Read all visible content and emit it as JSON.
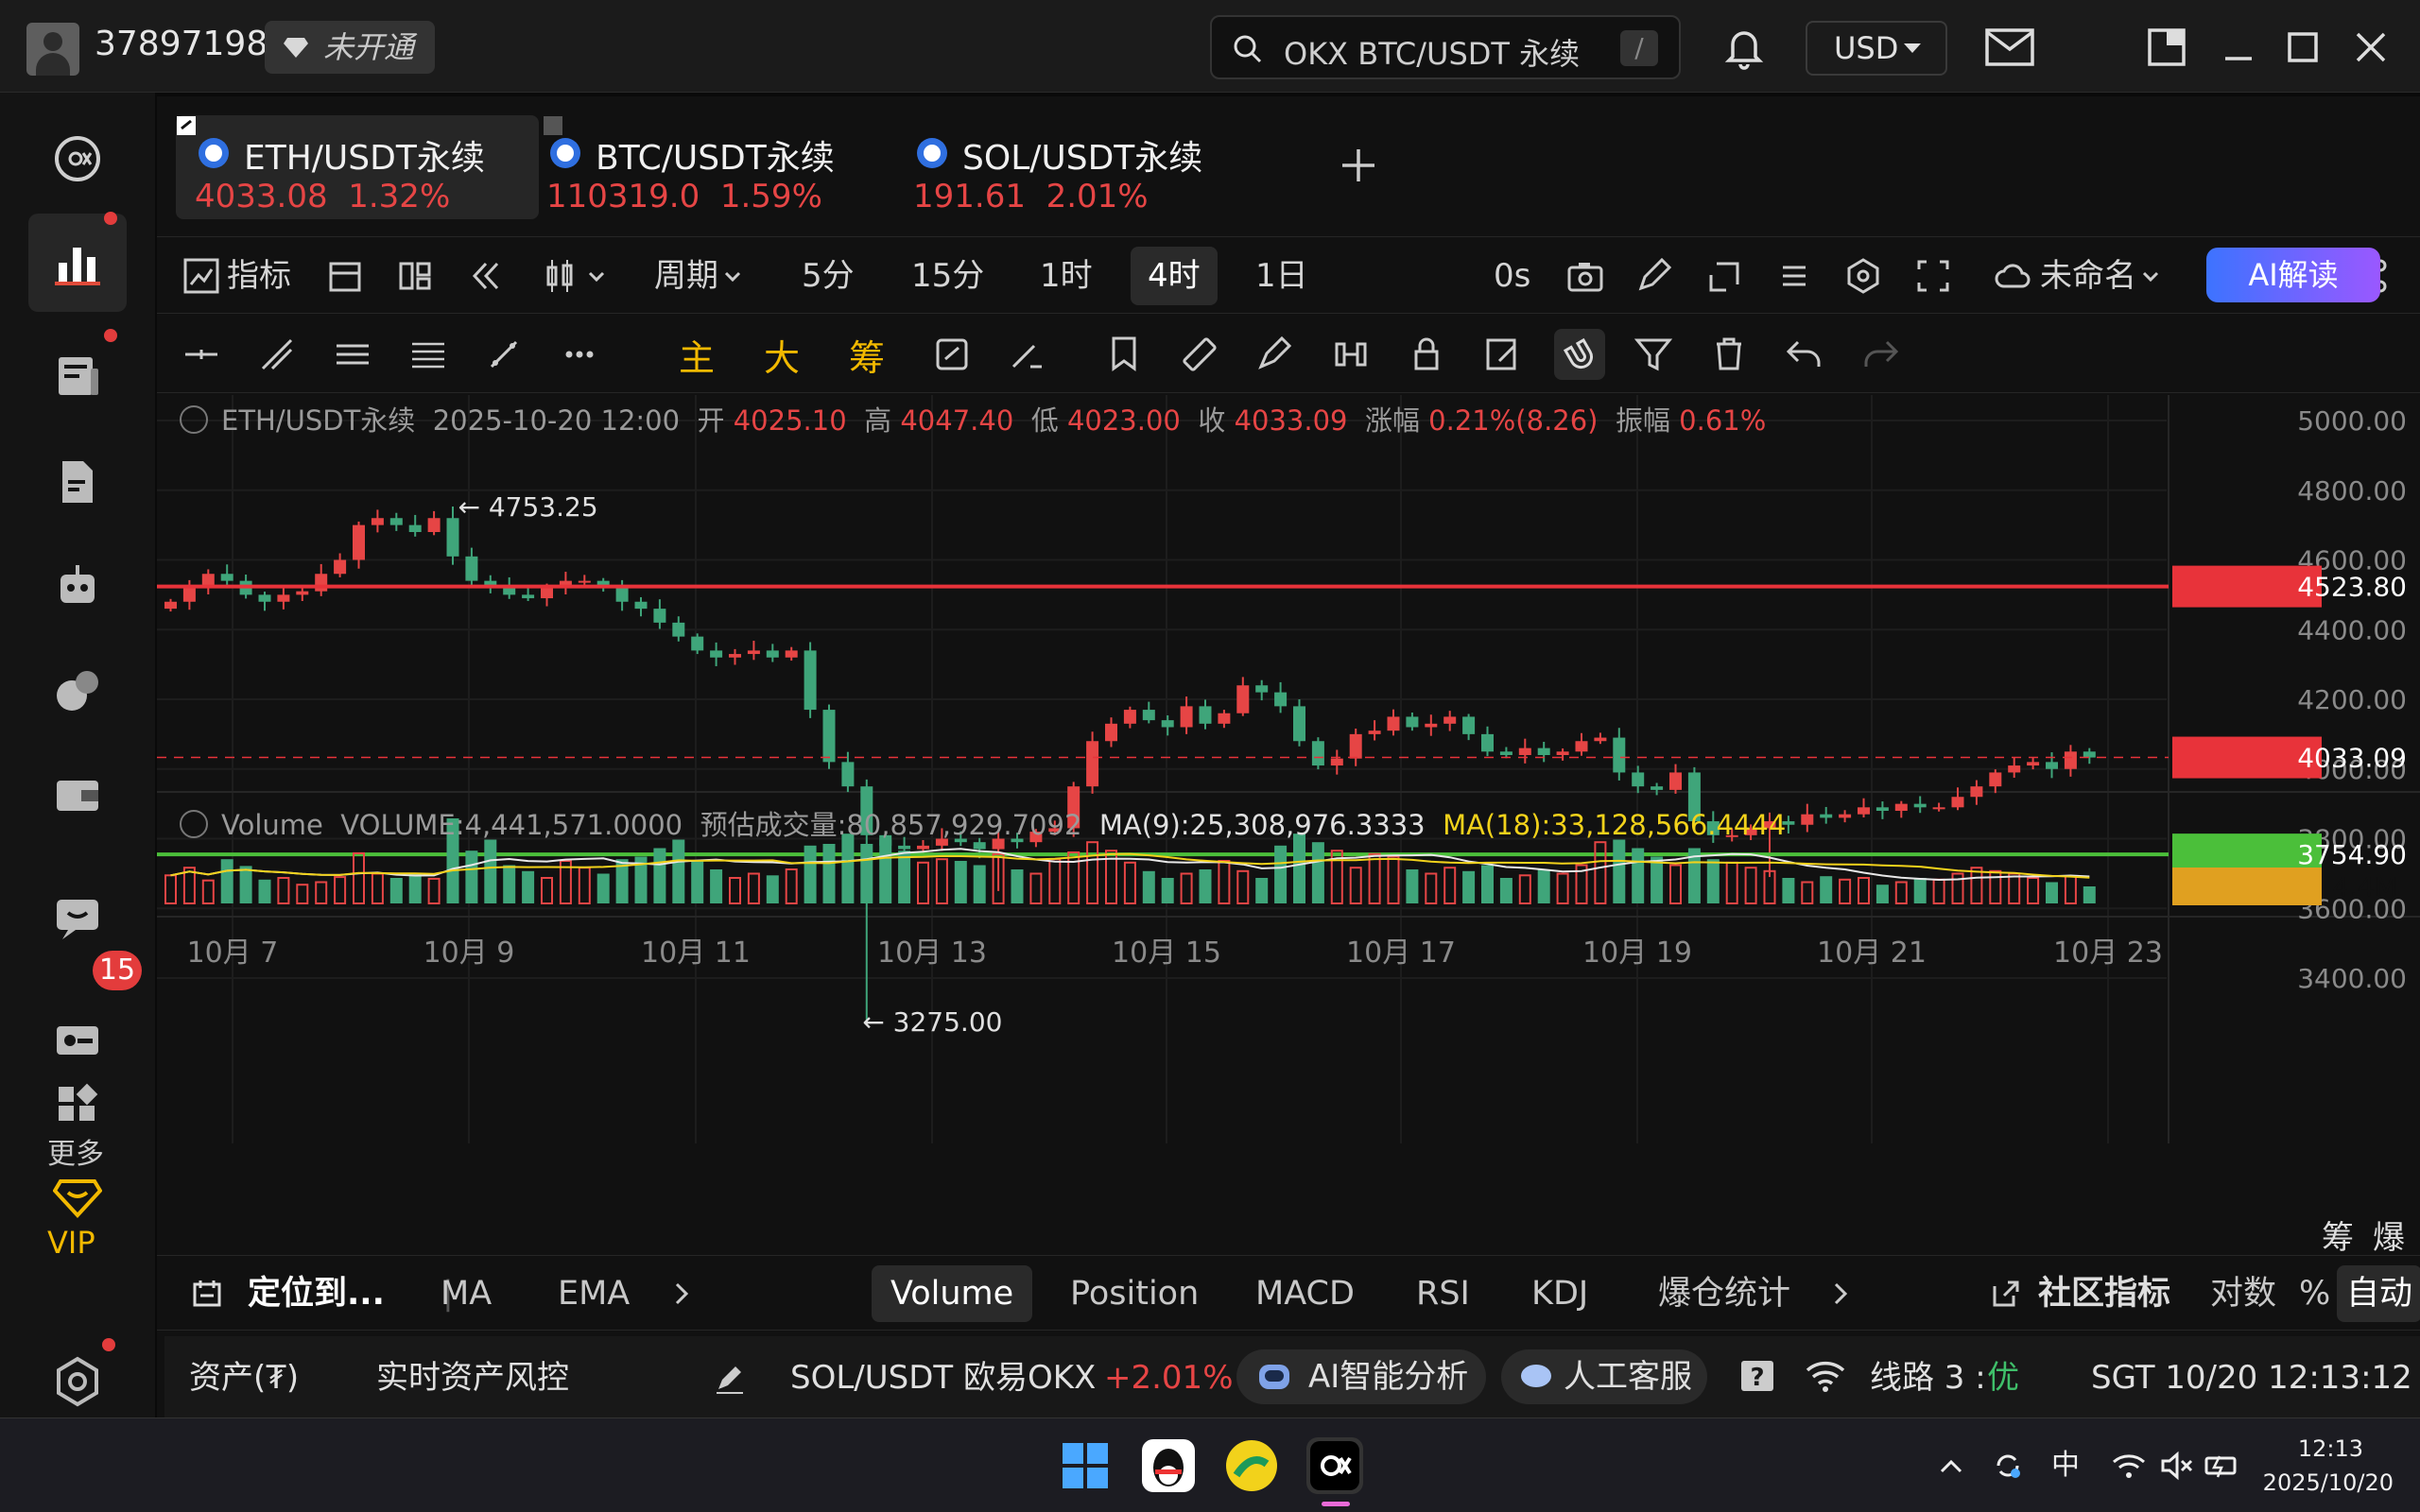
{
  "titlebar": {
    "account_id": "37897198",
    "vip_status": "未开通",
    "search_text": "OKX BTC/USDT 永续",
    "search_shortcut": "/",
    "currency": "USD"
  },
  "sidebar": {
    "badge_count": "15",
    "more_label": "更多",
    "vip_label": "VIP"
  },
  "tabs": [
    {
      "name": "ETH/USDT永续",
      "price": "4033.08",
      "change": "1.32%"
    },
    {
      "name": "BTC/USDT永续",
      "price": "110319.0",
      "change": "1.59%"
    },
    {
      "name": "SOL/USDT永续",
      "price": "191.61",
      "change": "2.01%"
    }
  ],
  "toolbar": {
    "indicator": "指标",
    "period": "周期",
    "intervals": [
      "5分",
      "15分",
      "1时",
      "4时",
      "1日"
    ],
    "active_interval": "4时",
    "countdown": "0s",
    "layout_name": "未命名",
    "ai_read": "AI解读"
  },
  "drawing_tools": {
    "main": "主",
    "big": "大",
    "chip": "筹"
  },
  "chart_data": {
    "type": "candlestick",
    "symbol": "ETH/USDT永续",
    "ohlc_header": {
      "datetime": "2025-10-20 12:00",
      "open_label": "开",
      "open": "4025.10",
      "high_label": "高",
      "high": "4047.40",
      "low_label": "低",
      "low": "4023.00",
      "close_label": "收",
      "close": "4033.09",
      "change_label": "涨幅",
      "change": "0.21%(8.26)",
      "amplitude_label": "振幅",
      "amplitude": "0.61%"
    },
    "y_ticks": [
      "5000.00",
      "4800.00",
      "4600.00",
      "4400.00",
      "4200.00",
      "4000.00",
      "3800.00",
      "3600.00",
      "3400.00"
    ],
    "ylim": [
      3275,
      5000
    ],
    "x_ticks": [
      "10月 7",
      "10月 9",
      "10月 11",
      "10月 13",
      "10月 15",
      "10月 17",
      "10月 19",
      "10月 21",
      "10月 23"
    ],
    "annotations": {
      "high": "4753.25",
      "low": "3275.00"
    },
    "horizontal_lines": [
      {
        "label": "4523.80",
        "value": 4523.8,
        "color": "#e8333a"
      },
      {
        "label": "4033.09",
        "value": 4033.09,
        "color": "#e8333a",
        "dashed": true
      },
      {
        "label": "3754.90",
        "value": 3754.9,
        "color": "#4bbf3a"
      }
    ],
    "closes": [
      4480,
      4520,
      4560,
      4540,
      4500,
      4480,
      4500,
      4510,
      4560,
      4600,
      4700,
      4720,
      4700,
      4680,
      4720,
      4610,
      4540,
      4520,
      4500,
      4490,
      4520,
      4540,
      4540,
      4520,
      4480,
      4460,
      4420,
      4380,
      4340,
      4320,
      4330,
      4340,
      4320,
      4340,
      4170,
      4020,
      3950,
      3810,
      3780,
      3770,
      3780,
      3800,
      3790,
      3770,
      3800,
      3790,
      3820,
      3830,
      3950,
      4080,
      4130,
      4170,
      4140,
      4120,
      4180,
      4130,
      4160,
      4240,
      4220,
      4180,
      4080,
      4010,
      4030,
      4100,
      4110,
      4150,
      4120,
      4130,
      4150,
      4100,
      4050,
      4040,
      4060,
      4040,
      4050,
      4080,
      4090,
      3990,
      3950,
      3940,
      3990,
      3850,
      3810,
      3810,
      3830,
      3850,
      3840,
      3870,
      3860,
      3870,
      3890,
      3880,
      3900,
      3890,
      3890,
      3920,
      3950,
      3990,
      4010,
      4020,
      4000,
      4050,
      4033
    ],
    "volume": {
      "label": "Volume",
      "value": "VOLUME:4,441,571.0000",
      "estimate": "预估成交量:80,857,929.7092",
      "ma9": "MA(9):25,308,976.3333",
      "ma18": "MA(18):33,128,566.4444",
      "axis_value": "4.4M",
      "bars": [
        0.33,
        0.42,
        0.27,
        0.52,
        0.44,
        0.28,
        0.3,
        0.22,
        0.25,
        0.31,
        0.59,
        0.35,
        0.3,
        0.35,
        0.29,
        1.0,
        0.62,
        0.75,
        0.45,
        0.38,
        0.3,
        0.5,
        0.42,
        0.35,
        0.52,
        0.55,
        0.65,
        0.75,
        0.5,
        0.4,
        0.3,
        0.35,
        0.33,
        0.4,
        0.68,
        0.7,
        0.82,
        0.7,
        0.75,
        0.62,
        0.48,
        0.52,
        0.5,
        0.45,
        0.58,
        0.4,
        0.35,
        0.52,
        0.6,
        0.72,
        0.62,
        0.48,
        0.38,
        0.3,
        0.35,
        0.4,
        0.5,
        0.38,
        0.3,
        0.68,
        0.82,
        0.72,
        0.62,
        0.42,
        0.58,
        0.55,
        0.4,
        0.35,
        0.42,
        0.38,
        0.45,
        0.3,
        0.33,
        0.4,
        0.35,
        0.45,
        0.72,
        0.75,
        0.65,
        0.55,
        0.45,
        0.65,
        0.52,
        0.48,
        0.42,
        0.38,
        0.3,
        0.25,
        0.32,
        0.28,
        0.3,
        0.22,
        0.25,
        0.3,
        0.28,
        0.35,
        0.42,
        0.38,
        0.35,
        0.3,
        0.25,
        0.32,
        0.2
      ]
    }
  },
  "indicator_bar": {
    "locate": "定位到...",
    "main_indicators": [
      "MA",
      "EMA"
    ],
    "sub_indicators": [
      "Volume",
      "Position",
      "MACD",
      "RSI",
      "KDJ",
      "爆仓统计"
    ],
    "active_sub": "Volume",
    "community": "社区指标",
    "log": "对数",
    "percent": "%",
    "auto": "自动",
    "chip_label": "筹",
    "liq_label": "爆"
  },
  "statusbar": {
    "assets": "资产(₮)",
    "risk": "实时资产风控",
    "ticker_name": "SOL/USDT 欧易OKX",
    "ticker_change": "+2.01%",
    "ai_analysis": "AI智能分析",
    "support": "人工客服",
    "line_label": "线路 3 :",
    "line_quality": "优",
    "clock": "SGT  10/20 12:13:12"
  },
  "taskbar": {
    "time": "12:13",
    "date": "2025/10/20",
    "ime": "中"
  },
  "colors": {
    "up": "#e64545",
    "down": "#3fa57a",
    "accent": "#f2b900"
  }
}
